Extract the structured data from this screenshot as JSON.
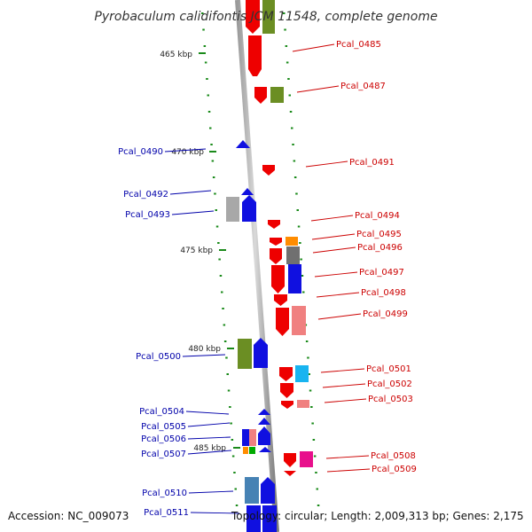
{
  "title": "Pyrobaculum calidifontis JCM 11548, complete genome",
  "accession": "Accession: NC_009073",
  "topology": "Topology: circular; Length: 2,009,313 bp; Genes: 2,175",
  "kbp_ticks": [
    "465 kbp",
    "470 kbp",
    "475 kbp",
    "480 kbp",
    "485 kbp"
  ],
  "colors": {
    "forward_label": "#cc0000",
    "reverse_label": "#0000aa",
    "red": "#ee0000",
    "blue": "#1010e0",
    "olive": "#6b8e23",
    "gray": "#a8a8a8",
    "orange": "#ff8c00",
    "cyan": "#18b4f0",
    "pink": "#f08080",
    "magenta": "#e8108c",
    "steelblue": "#4682b4",
    "green": "#00aa00",
    "tick": "#1a8a1a"
  },
  "labels_right": [
    "Pcal_0485",
    "Pcal_0487",
    "Pcal_0491",
    "Pcal_0494",
    "Pcal_0495",
    "Pcal_0496",
    "Pcal_0497",
    "Pcal_0498",
    "Pcal_0499",
    "Pcal_0501",
    "Pcal_0502",
    "Pcal_0503",
    "Pcal_0508",
    "Pcal_0509"
  ],
  "labels_left": [
    "Pcal_0490",
    "Pcal_0492",
    "Pcal_0493",
    "Pcal_0500",
    "Pcal_0504",
    "Pcal_0505",
    "Pcal_0506",
    "Pcal_0507",
    "Pcal_0510",
    "Pcal_0511"
  ]
}
